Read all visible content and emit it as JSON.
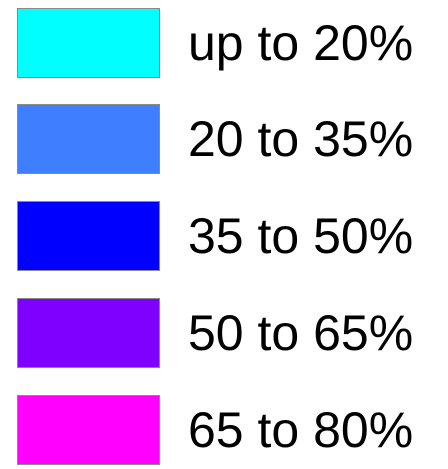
{
  "legend": {
    "items": [
      {
        "label": "up to 20%",
        "color": "#00FFFF"
      },
      {
        "label": "20 to 35%",
        "color": "#3F7FFF"
      },
      {
        "label": "35 to 50%",
        "color": "#0000FF"
      },
      {
        "label": "50 to 65%",
        "color": "#7F00FF"
      },
      {
        "label": "65 to 80%",
        "color": "#FF00FF"
      }
    ]
  }
}
